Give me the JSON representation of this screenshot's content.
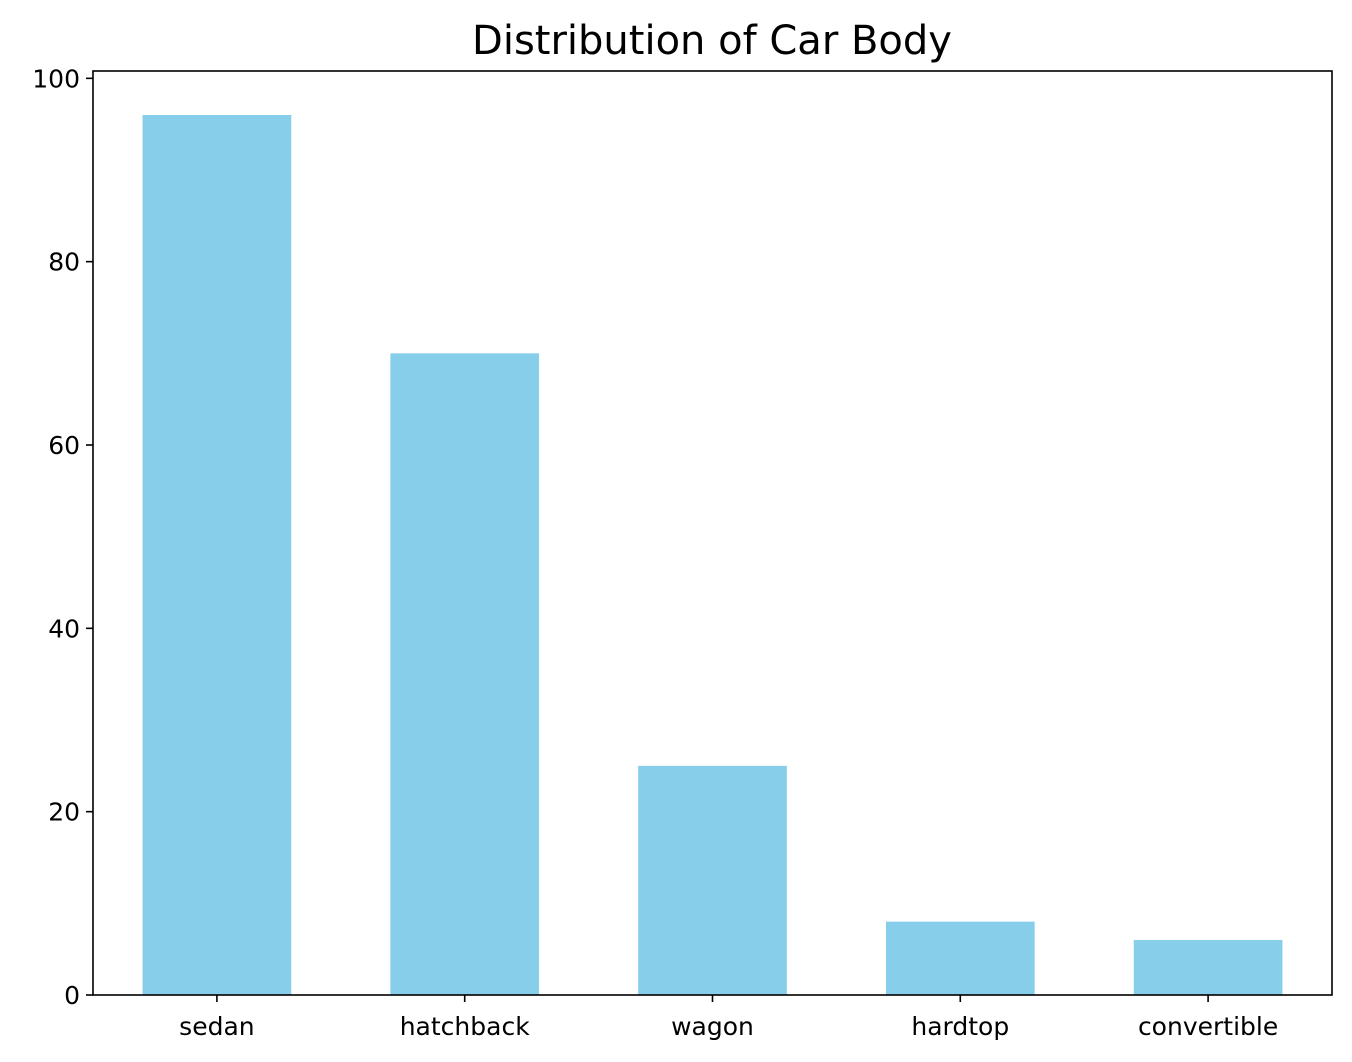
{
  "chart_data": {
    "type": "bar",
    "title": "Distribution of Car Body",
    "xlabel": "",
    "ylabel": "",
    "categories": [
      "sedan",
      "hatchback",
      "wagon",
      "hardtop",
      "convertible"
    ],
    "values": [
      96,
      70,
      25,
      8,
      6
    ],
    "ylim": [
      0,
      100.8
    ],
    "yticks": [
      0,
      20,
      40,
      60,
      80,
      100
    ],
    "grid": false,
    "legend": "none",
    "bar_color": "#87CEEB"
  }
}
